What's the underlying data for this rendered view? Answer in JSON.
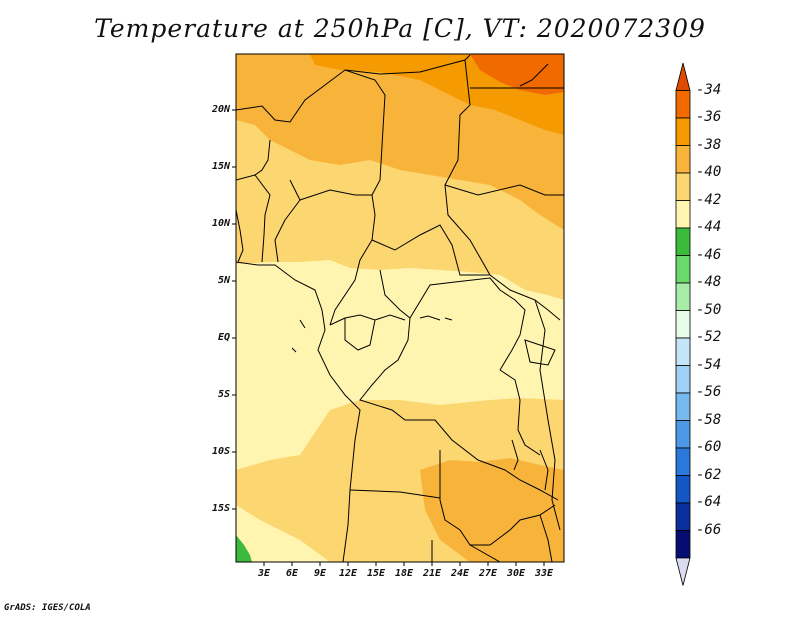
{
  "title": "Temperature at 250hPa [C], VT: 2020072309",
  "footer": "GrADS: IGES/COLA",
  "axes": {
    "lat_labels": [
      "20N",
      "15N",
      "10N",
      "5N",
      "EQ",
      "5S",
      "10S",
      "15S"
    ],
    "lon_labels": [
      "3E",
      "6E",
      "9E",
      "12E",
      "15E",
      "18E",
      "21E",
      "24E",
      "27E",
      "30E",
      "33E"
    ]
  },
  "colorbar": {
    "labels": [
      "-34",
      "-36",
      "-38",
      "-40",
      "-42",
      "-44",
      "-46",
      "-48",
      "-50",
      "-52",
      "-54",
      "-56",
      "-58",
      "-60",
      "-62",
      "-64",
      "-66"
    ],
    "colors": [
      "#e04a00",
      "#f06a00",
      "#f59a00",
      "#f8b43a",
      "#fbd671",
      "#fff5b0",
      "#3cba3c",
      "#6bd86b",
      "#a8eca8",
      "#e8fce8",
      "#c5e4f8",
      "#9fd0f5",
      "#76b9ef",
      "#4c98e6",
      "#2b78db",
      "#1456c4",
      "#0a2f9a",
      "#070d70",
      "#dcdcf0"
    ]
  },
  "map_colors": {
    "t42": "#fff5b0",
    "t40": "#fbd671",
    "t38": "#f8b43a",
    "t36": "#f59a00",
    "t34": "#f06a00",
    "t44": "#3cba3c"
  }
}
